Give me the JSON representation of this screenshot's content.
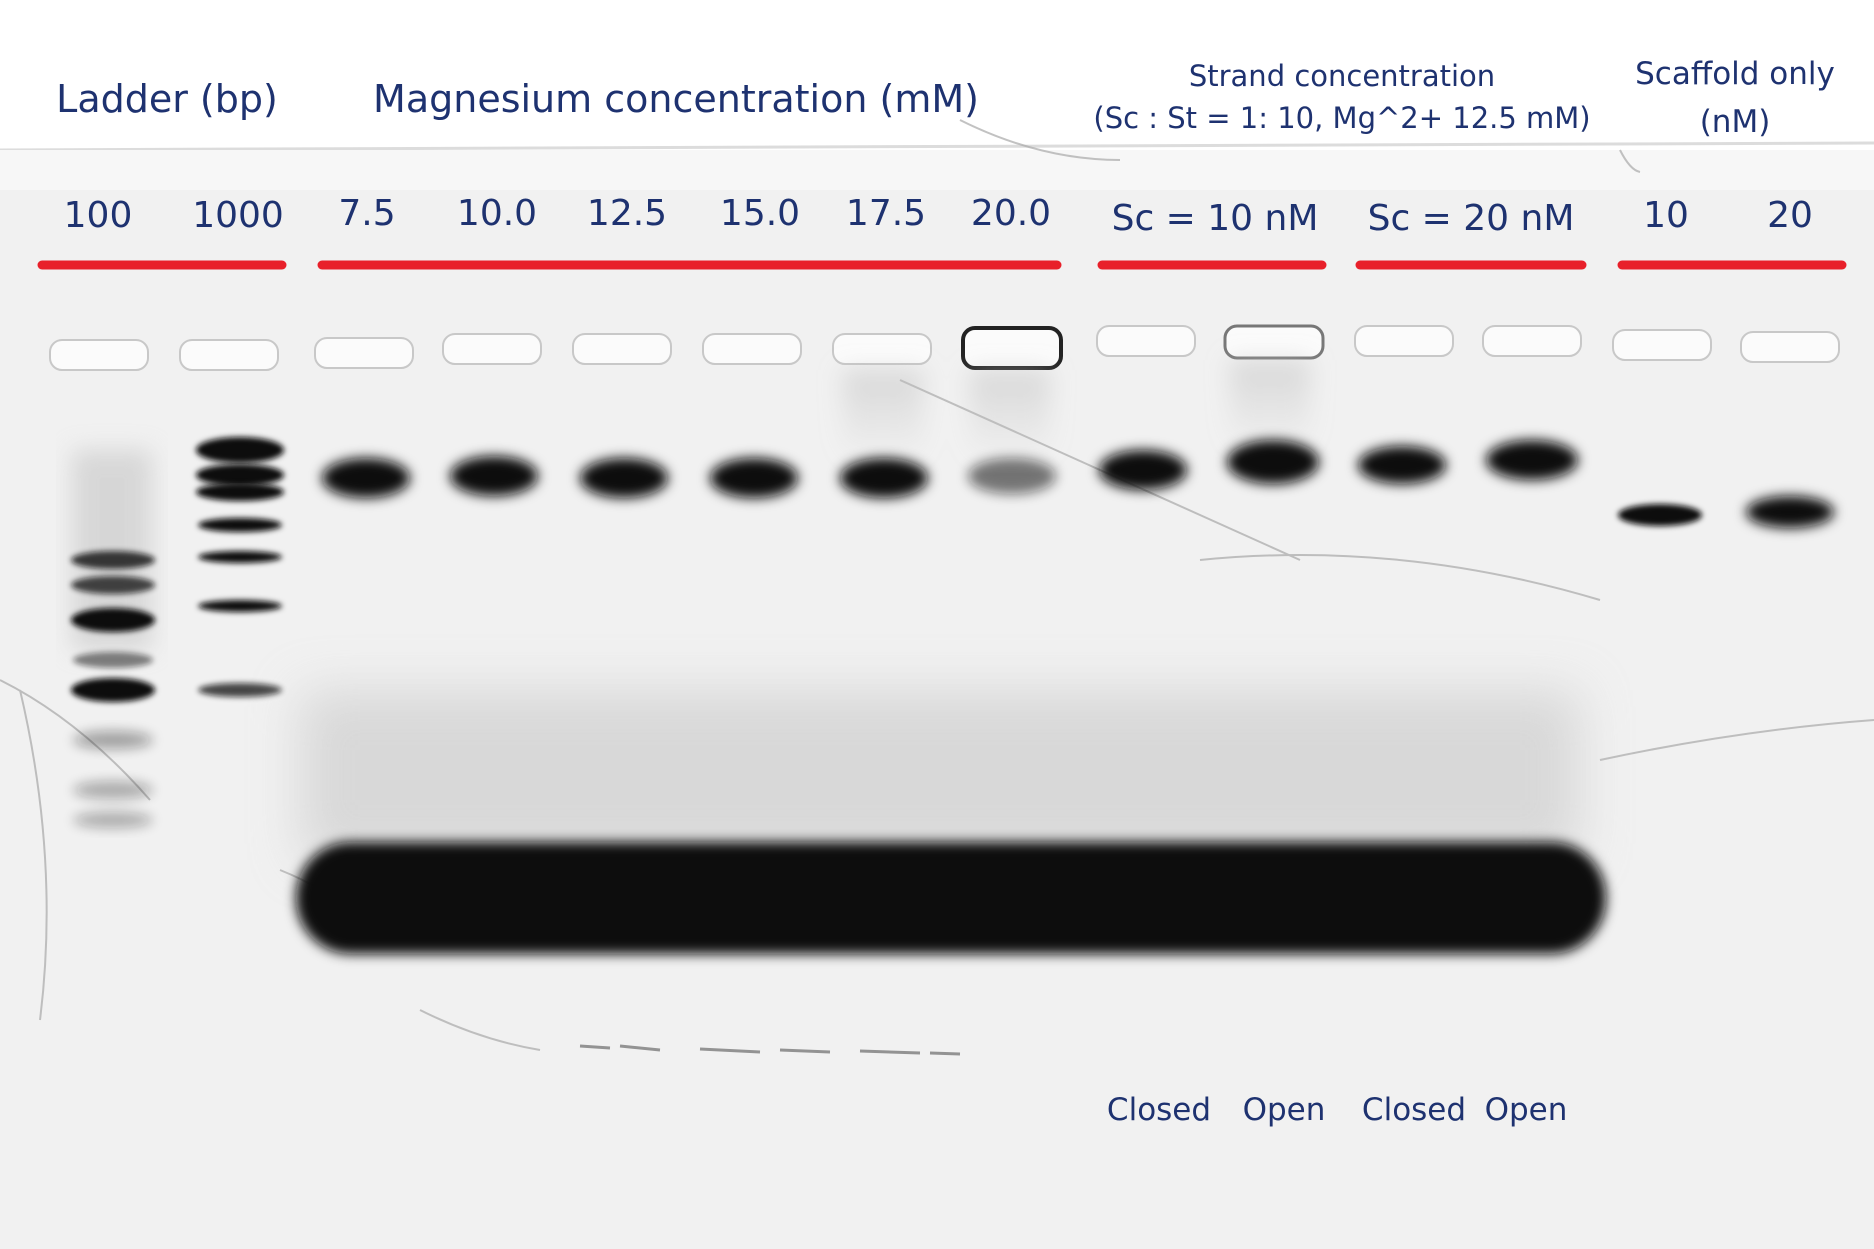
{
  "colors": {
    "label_text": "#1e3270",
    "group_bar": "#e8202a",
    "gel_background": "#f1f1f1",
    "band": "#0d0d0d"
  },
  "headers": {
    "ladder": "Ladder (bp)",
    "magnesium": "Magnesium concentration (mM)",
    "strand_line1": "Strand concentration",
    "strand_line2": "(Sc : St = 1: 10, Mg^2+ 12.5 mM)",
    "scaffold_line1": "Scaffold only",
    "scaffold_line2": "(nM)"
  },
  "lanes": {
    "ladder_100": "100",
    "ladder_1000": "1000",
    "mg_1": "7.5",
    "mg_2": "10.0",
    "mg_3": "12.5",
    "mg_4": "15.0",
    "mg_5": "17.5",
    "mg_6": "20.0",
    "sc_10": "Sc = 10 nM",
    "sc_20": "Sc = 20 nM",
    "scaffold_10": "10",
    "scaffold_20": "20"
  },
  "states": {
    "closed_1": "Closed",
    "open_1": "Open",
    "closed_2": "Closed",
    "open_2": "Open"
  }
}
